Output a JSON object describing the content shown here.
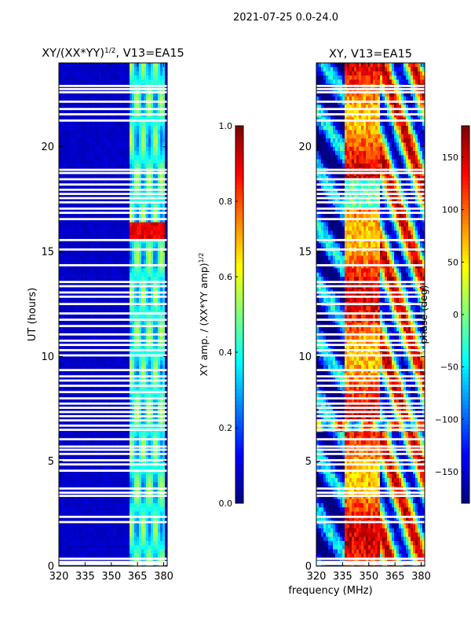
{
  "figure_title": "2021-07-25 0.0-24.0",
  "shared_xlabel": "frequency (MHz)",
  "colors": {
    "background": "#ffffff",
    "axis": "#000000",
    "gap": "#ffffff"
  },
  "chart_data": [
    {
      "type": "heatmap",
      "title_main": "XY/(XX*YY)",
      "title_sup": "1/2",
      "title_rest": ", V13=EA15",
      "xlabel": "",
      "ylabel": "UT (hours)",
      "xlim": [
        320,
        382
      ],
      "ylim": [
        0,
        24
      ],
      "xticks": [
        320,
        335,
        350,
        365,
        380
      ],
      "yticks": [
        0,
        5,
        10,
        15,
        20
      ],
      "colorbar": {
        "label_main": "XY amp. / (XX*YY amp)",
        "label_sup": "1/2",
        "range": [
          0.0,
          1.0
        ],
        "ticks": [
          "0.0",
          "0.2",
          "0.4",
          "0.6",
          "0.8",
          "1.0"
        ],
        "tick_values": [
          0.0,
          0.2,
          0.4,
          0.6,
          0.8,
          1.0
        ],
        "colormap": "jet"
      },
      "pattern": {
        "background_value": 0.05,
        "active_band_mhz": [
          360,
          380
        ],
        "active_value_range": [
          0.2,
          0.55
        ],
        "hot_rows_hours": [
          [
            15.7,
            16.3
          ]
        ],
        "hot_value": 0.85
      }
    },
    {
      "type": "heatmap",
      "title_main": "XY, V13=EA15",
      "xlabel": "",
      "ylabel": "",
      "xlim": [
        320,
        382
      ],
      "ylim": [
        0,
        24
      ],
      "xticks": [
        320,
        335,
        350,
        365,
        380
      ],
      "yticks": [
        0,
        5,
        10,
        15,
        20
      ],
      "colorbar": {
        "label_main": "phase (deg)",
        "range": [
          -180,
          180
        ],
        "ticks": [
          "−150",
          "−100",
          "−50",
          "0",
          "50",
          "100",
          "150"
        ],
        "tick_values": [
          -150,
          -100,
          -50,
          0,
          50,
          100,
          150
        ],
        "colormap": "jet"
      }
    }
  ],
  "gap_rows_hours": [
    0.1,
    0.2,
    0.35,
    2.1,
    2.35,
    3.35,
    3.5,
    3.7,
    4.55,
    4.85,
    5.05,
    5.35,
    5.55,
    5.7,
    6.05,
    6.5,
    6.7,
    6.95,
    7.15,
    7.35,
    7.55,
    7.75,
    8.0,
    8.3,
    8.6,
    8.85,
    9.05,
    9.35,
    10.05,
    10.3,
    10.55,
    10.75,
    11.05,
    11.45,
    11.75,
    12.05,
    12.5,
    12.85,
    13.05,
    13.35,
    13.55,
    14.35,
    15.1,
    15.55,
    16.55,
    16.85,
    17.05,
    17.35,
    17.55,
    17.75,
    17.95,
    18.2,
    18.45,
    18.75,
    18.9,
    21.25,
    21.55,
    21.8,
    22.15,
    22.6,
    22.75,
    22.9
  ]
}
